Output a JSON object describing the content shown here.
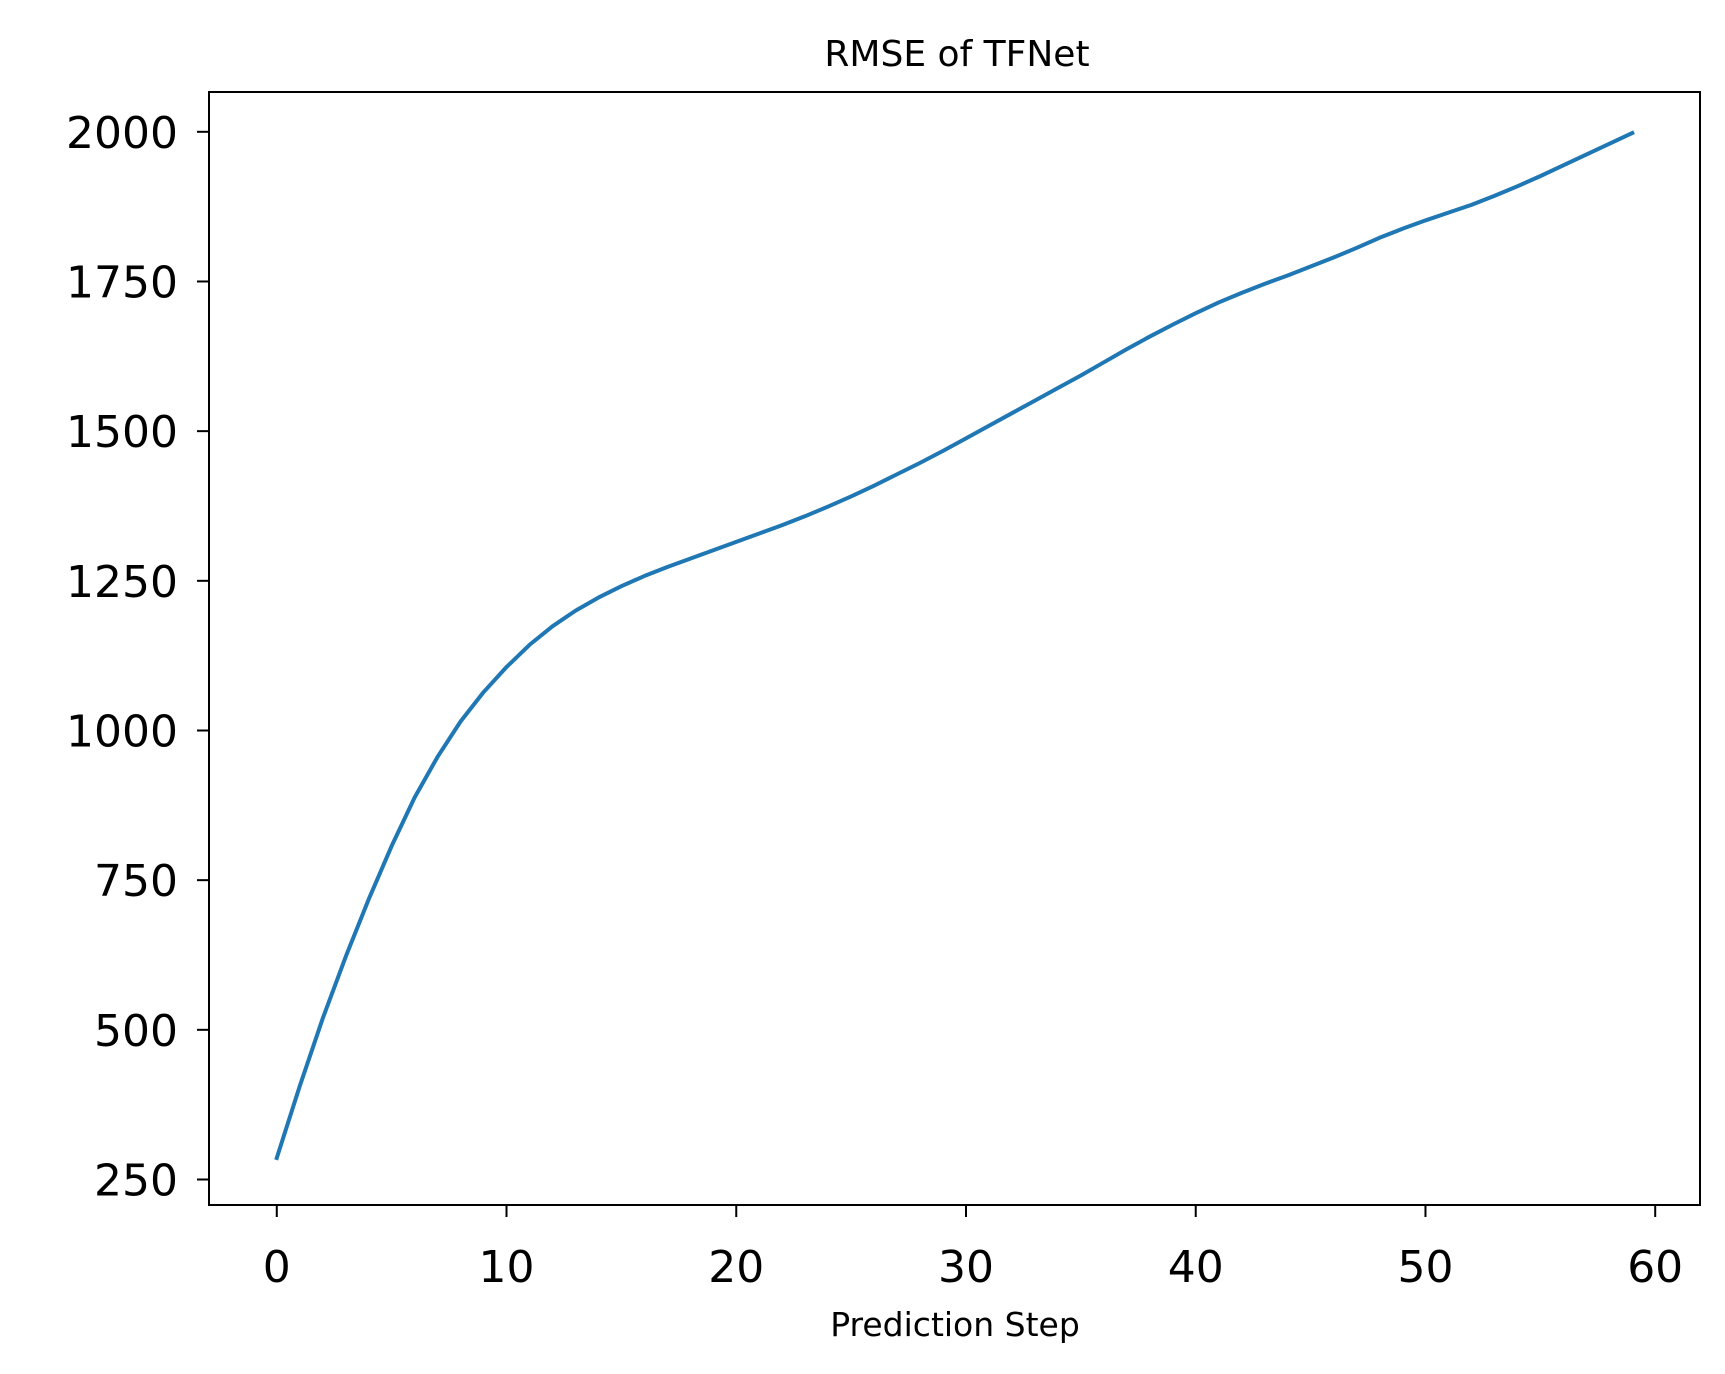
{
  "chart_data": {
    "type": "line",
    "title": "RMSE of TFNet",
    "xlabel": "Prediction Step",
    "ylabel": "",
    "xlim": [
      -2.95,
      61.95
    ],
    "ylim": [
      207.4,
      2066.5
    ],
    "xticks": [
      0,
      10,
      20,
      30,
      40,
      50,
      60
    ],
    "yticks": [
      250,
      500,
      750,
      1000,
      1250,
      1500,
      1750,
      2000
    ],
    "grid": false,
    "series": [
      {
        "color": "#1f77b4",
        "x": [
          0,
          1,
          2,
          3,
          4,
          5,
          6,
          7,
          8,
          9,
          10,
          11,
          12,
          13,
          14,
          15,
          16,
          17,
          18,
          19,
          20,
          21,
          22,
          23,
          24,
          25,
          26,
          27,
          28,
          29,
          30,
          31,
          32,
          33,
          34,
          35,
          36,
          37,
          38,
          39,
          40,
          41,
          42,
          43,
          44,
          45,
          46,
          47,
          48,
          49,
          50,
          51,
          52,
          53,
          54,
          55,
          56,
          57,
          58,
          59
        ],
        "y": [
          286,
          406,
          519,
          622,
          718,
          807,
          888,
          956,
          1015,
          1064,
          1106,
          1143,
          1174,
          1200,
          1222,
          1241,
          1258,
          1273,
          1287,
          1301,
          1315,
          1329,
          1343,
          1358,
          1374,
          1391,
          1409,
          1428,
          1447,
          1467,
          1488,
          1509,
          1530,
          1551,
          1572,
          1593,
          1615,
          1637,
          1658,
          1678,
          1697,
          1715,
          1731,
          1746,
          1760,
          1775,
          1790,
          1806,
          1823,
          1838,
          1852,
          1865,
          1878,
          1893,
          1909,
          1926,
          1944,
          1962,
          1980,
          1998
        ]
      }
    ]
  }
}
